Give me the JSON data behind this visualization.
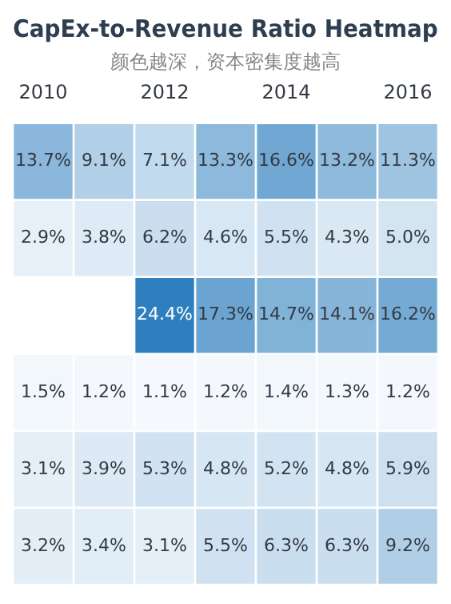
{
  "chart_data": {
    "type": "heatmap",
    "title": "CapEx-to-Revenue Ratio Heatmap",
    "subtitle": "颜色越深，资本密集度越高",
    "categories": [
      "2010",
      null,
      "2012",
      null,
      "2014",
      null,
      "2016"
    ],
    "y_categories": [
      null,
      null,
      null,
      null,
      null,
      null
    ],
    "cells": [
      [
        13.7,
        9.1,
        7.1,
        13.3,
        16.6,
        13.2,
        11.3
      ],
      [
        2.9,
        3.8,
        6.2,
        4.6,
        5.5,
        4.3,
        5.0
      ],
      [
        null,
        null,
        24.4,
        17.3,
        14.7,
        14.1,
        16.2
      ],
      [
        1.5,
        1.2,
        1.1,
        1.2,
        1.4,
        1.3,
        1.2
      ],
      [
        3.1,
        3.9,
        5.3,
        4.8,
        5.2,
        4.8,
        5.9
      ],
      [
        3.2,
        3.4,
        3.1,
        5.5,
        6.3,
        6.3,
        9.2
      ]
    ],
    "cell_labels": [
      [
        "13.7%",
        "9.1%",
        "7.1%",
        "13.3%",
        "16.6%",
        "13.2%",
        "11.3%"
      ],
      [
        "2.9%",
        "3.8%",
        "6.2%",
        "4.6%",
        "5.5%",
        "4.3%",
        "5.0%"
      ],
      [
        null,
        null,
        "24.4%",
        "17.3%",
        "14.7%",
        "14.1%",
        "16.2%"
      ],
      [
        "1.5%",
        "1.2%",
        "1.1%",
        "1.2%",
        "1.4%",
        "1.3%",
        "1.2%"
      ],
      [
        "3.1%",
        "3.9%",
        "5.3%",
        "4.8%",
        "5.2%",
        "4.8%",
        "5.9%"
      ],
      [
        "3.2%",
        "3.4%",
        "3.1%",
        "5.5%",
        "6.3%",
        "6.3%",
        "9.2%"
      ]
    ]
  }
}
